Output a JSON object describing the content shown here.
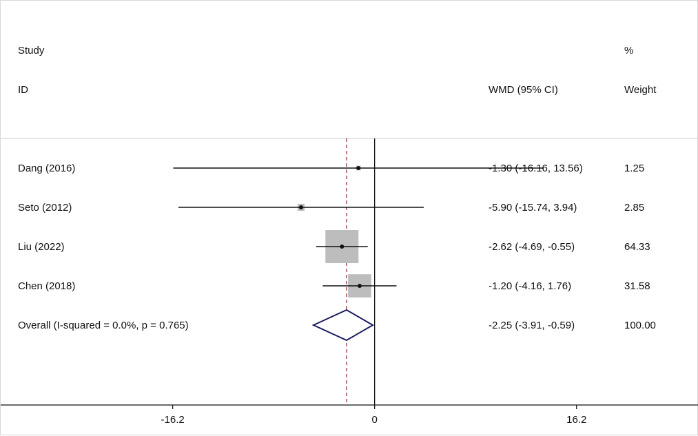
{
  "chart_data": {
    "type": "forest",
    "headers": {
      "study": "Study",
      "id": "ID",
      "effect": "WMD (95% CI)",
      "pct": "%",
      "weight": "Weight"
    },
    "x_ticks": [
      {
        "value": -16.2,
        "label": "-16.2"
      },
      {
        "value": 0,
        "label": "0"
      },
      {
        "value": 16.2,
        "label": "16.2"
      }
    ],
    "xlim": [
      -30.0,
      26.0
    ],
    "null_line": 0,
    "studies": [
      {
        "label": "Dang (2016)",
        "estimate": -1.3,
        "lower": -16.16,
        "upper": 13.56,
        "ci_text": "-1.30 (-16.16, 13.56)",
        "weight": 1.25,
        "weight_text": "1.25"
      },
      {
        "label": "Seto (2012)",
        "estimate": -5.9,
        "lower": -15.74,
        "upper": 3.94,
        "ci_text": "-5.90 (-15.74, 3.94)",
        "weight": 2.85,
        "weight_text": "2.85"
      },
      {
        "label": "Liu (2022)",
        "estimate": -2.62,
        "lower": -4.69,
        "upper": -0.55,
        "ci_text": "-2.62 (-4.69, -0.55)",
        "weight": 64.33,
        "weight_text": "64.33"
      },
      {
        "label": "Chen (2018)",
        "estimate": -1.2,
        "lower": -4.16,
        "upper": 1.76,
        "ci_text": "-1.20 (-4.16, 1.76)",
        "weight": 31.58,
        "weight_text": "31.58"
      }
    ],
    "overall": {
      "label": "Overall  (I-squared = 0.0%, p = 0.765)",
      "estimate": -2.25,
      "lower": -3.91,
      "upper": -0.59,
      "ci_text": "-2.25 (-3.91, -0.59)",
      "weight_text": "100.00"
    },
    "colors": {
      "ci_line": "#111111",
      "weight_box": "#bdbdbd",
      "point": "#111111",
      "diamond": "#1a1a5e",
      "overall_line": "#8b2a2a",
      "axis": "#111111",
      "header_rule": "#c8c8c8"
    }
  }
}
